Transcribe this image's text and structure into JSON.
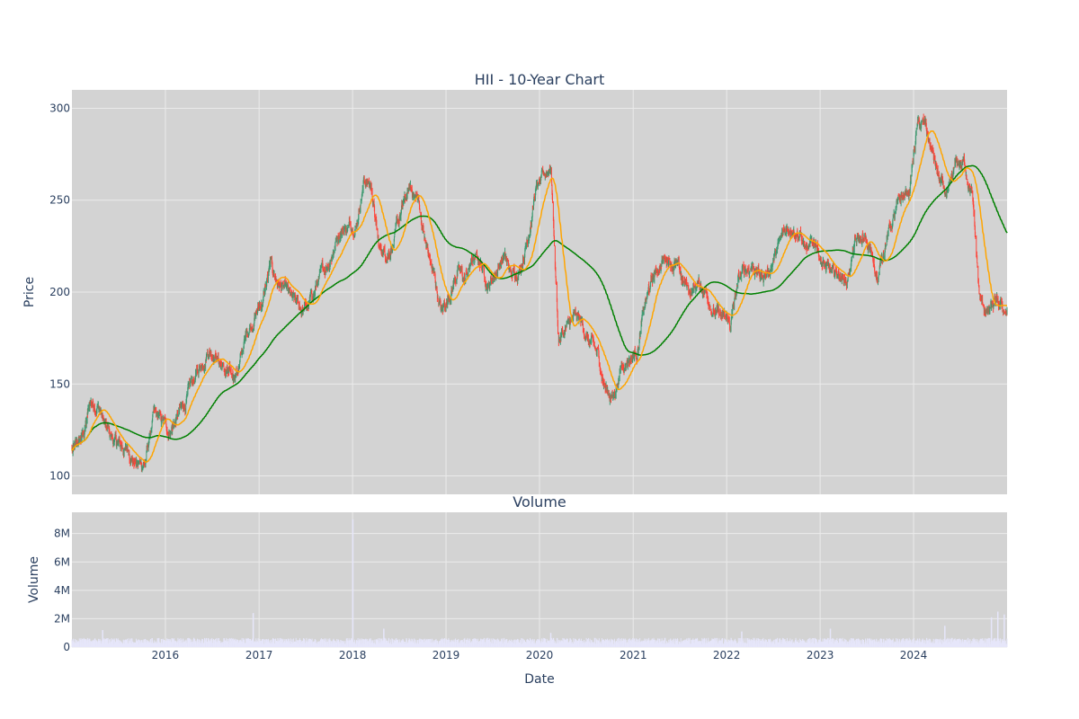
{
  "colors": {
    "plot_bg": "#d3d3d3",
    "grid": "#ebebeb",
    "text": "#2a3f5f",
    "increasing": "#3d9970",
    "decreasing": "#ff4136",
    "ma_fast": "#ffa500",
    "ma_slow": "#008000",
    "volume": "#e6e6fa"
  },
  "chart_data": [
    {
      "type": "candlestick",
      "title": "HII - 10-Year Chart",
      "xlabel": "",
      "ylabel": "Price",
      "xlim": [
        "2015-01-01",
        "2024-12-31"
      ],
      "ylim": [
        90,
        310
      ],
      "y_ticks": [
        100,
        150,
        200,
        250,
        300
      ],
      "grid": true,
      "series": [
        {
          "kind": "close",
          "dates": [
            "2015-01",
            "2015-02",
            "2015-03",
            "2015-04",
            "2015-05",
            "2015-06",
            "2015-07",
            "2015-08",
            "2015-09",
            "2015-10",
            "2015-11",
            "2015-12",
            "2016-01",
            "2016-02",
            "2016-03",
            "2016-04",
            "2016-05",
            "2016-06",
            "2016-07",
            "2016-08",
            "2016-09",
            "2016-10",
            "2016-11",
            "2016-12",
            "2017-01",
            "2017-02",
            "2017-03",
            "2017-04",
            "2017-05",
            "2017-06",
            "2017-07",
            "2017-08",
            "2017-09",
            "2017-10",
            "2017-11",
            "2017-12",
            "2018-01",
            "2018-02",
            "2018-03",
            "2018-04",
            "2018-05",
            "2018-06",
            "2018-07",
            "2018-08",
            "2018-09",
            "2018-10",
            "2018-11",
            "2018-12",
            "2019-01",
            "2019-02",
            "2019-03",
            "2019-04",
            "2019-05",
            "2019-06",
            "2019-07",
            "2019-08",
            "2019-09",
            "2019-10",
            "2019-11",
            "2019-12",
            "2020-01",
            "2020-02",
            "2020-03",
            "2020-04",
            "2020-05",
            "2020-06",
            "2020-07",
            "2020-08",
            "2020-09",
            "2020-10",
            "2020-11",
            "2020-12",
            "2021-01",
            "2021-02",
            "2021-03",
            "2021-04",
            "2021-05",
            "2021-06",
            "2021-07",
            "2021-08",
            "2021-09",
            "2021-10",
            "2021-11",
            "2021-12",
            "2022-01",
            "2022-02",
            "2022-03",
            "2022-04",
            "2022-05",
            "2022-06",
            "2022-07",
            "2022-08",
            "2022-09",
            "2022-10",
            "2022-11",
            "2022-12",
            "2023-01",
            "2023-02",
            "2023-03",
            "2023-04",
            "2023-05",
            "2023-06",
            "2023-07",
            "2023-08",
            "2023-09",
            "2023-10",
            "2023-11",
            "2023-12",
            "2024-01",
            "2024-02",
            "2024-03",
            "2024-04",
            "2024-05",
            "2024-06",
            "2024-07",
            "2024-08",
            "2024-09",
            "2024-10",
            "2024-11",
            "2024-12"
          ],
          "values": [
            114,
            122,
            140,
            139,
            125,
            118,
            115,
            113,
            106,
            108,
            132,
            129,
            124,
            132,
            138,
            150,
            158,
            170,
            168,
            158,
            152,
            160,
            178,
            188,
            196,
            214,
            205,
            200,
            193,
            190,
            192,
            204,
            212,
            223,
            235,
            236,
            238,
            262,
            258,
            222,
            222,
            230,
            245,
            256,
            250,
            225,
            208,
            188,
            200,
            212,
            206,
            218,
            216,
            204,
            212,
            220,
            208,
            214,
            230,
            255,
            260,
            270,
            175,
            180,
            185,
            182,
            172,
            165,
            148,
            143,
            160,
            165,
            168,
            192,
            205,
            215,
            220,
            215,
            205,
            200,
            205,
            200,
            190,
            185,
            182,
            205,
            212,
            215,
            208,
            212,
            222,
            232,
            238,
            232,
            220,
            228,
            215,
            208,
            210,
            206,
            225,
            228,
            222,
            208,
            230,
            240,
            250,
            255,
            290,
            290,
            275,
            258,
            250,
            268,
            270,
            256,
            195,
            188,
            192,
            190
          ]
        },
        {
          "kind": "moving-average-fast",
          "note": "shorter moving average"
        },
        {
          "kind": "moving-average-slow",
          "note": "longer moving average"
        }
      ]
    },
    {
      "type": "bar",
      "title": "Volume",
      "xlabel": "Date",
      "ylabel": "Volume",
      "ylim": [
        0,
        9500000
      ],
      "y_ticks": [
        0,
        2000000,
        4000000,
        6000000,
        8000000
      ],
      "y_tick_labels": [
        "0",
        "2M",
        "4M",
        "6M",
        "8M"
      ],
      "x_ticks": [
        "2016",
        "2017",
        "2018",
        "2019",
        "2020",
        "2021",
        "2022",
        "2023",
        "2024"
      ],
      "grid": true,
      "typical_volume": 500000,
      "spikes": [
        {
          "date": "2015-05-01",
          "volume": 1200000
        },
        {
          "date": "2016-12-09",
          "volume": 2400000
        },
        {
          "date": "2018-01-02",
          "volume": 9000000
        },
        {
          "date": "2018-05-03",
          "volume": 1300000
        },
        {
          "date": "2020-02-14",
          "volume": 1000000
        },
        {
          "date": "2022-03-01",
          "volume": 1100000
        },
        {
          "date": "2023-02-10",
          "volume": 1300000
        },
        {
          "date": "2024-05-02",
          "volume": 1500000
        },
        {
          "date": "2024-10-31",
          "volume": 2100000
        },
        {
          "date": "2024-11-25",
          "volume": 2500000
        },
        {
          "date": "2024-12-20",
          "volume": 2300000
        }
      ]
    }
  ]
}
